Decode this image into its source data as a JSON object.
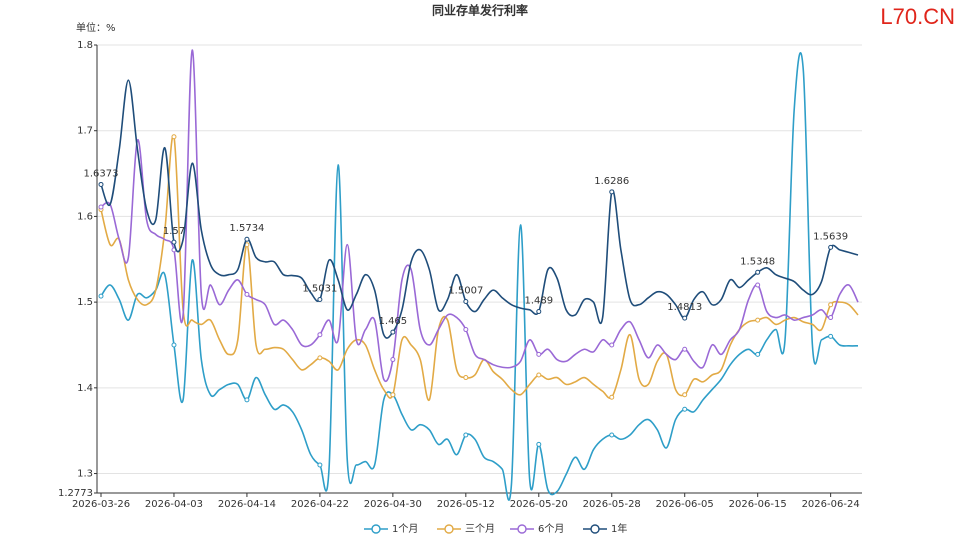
{
  "chart_data": {
    "type": "line",
    "title": "同业存单发行利率",
    "watermark": "L70.CN",
    "y_label": "单位：%",
    "legend": "bottom",
    "grid": true,
    "smooth": true,
    "ylim": [
      1.2773,
      1.8
    ],
    "yticks": [
      1.2773,
      1.3,
      1.4,
      1.5,
      1.6,
      1.7,
      1.8
    ],
    "categories": [
      "2026-03-26",
      null,
      null,
      null,
      null,
      null,
      null,
      null,
      "2026-04-03",
      null,
      null,
      null,
      null,
      null,
      null,
      null,
      "2026-04-14",
      null,
      null,
      null,
      null,
      null,
      null,
      null,
      "2026-04-22",
      null,
      null,
      null,
      null,
      null,
      null,
      null,
      "2026-04-30",
      null,
      null,
      null,
      null,
      null,
      null,
      null,
      "2026-05-12",
      null,
      null,
      null,
      null,
      null,
      null,
      null,
      "2026-05-20",
      null,
      null,
      null,
      null,
      null,
      null,
      null,
      "2026-05-28",
      null,
      null,
      null,
      null,
      null,
      null,
      null,
      "2026-06-05",
      null,
      null,
      null,
      null,
      null,
      null,
      null,
      "2026-06-15",
      null,
      null,
      null,
      null,
      null,
      null,
      null,
      "2026-06-24",
      null,
      null,
      null
    ],
    "series": [
      {
        "name": "1个月",
        "color": "#2e9ec8",
        "values": [
          1.507,
          1.52,
          1.503,
          1.479,
          1.509,
          1.505,
          1.514,
          1.532,
          1.45,
          1.386,
          1.549,
          1.433,
          1.392,
          1.398,
          1.404,
          1.404,
          1.386,
          1.412,
          1.392,
          1.375,
          1.38,
          1.372,
          1.351,
          1.322,
          1.31,
          1.305,
          1.66,
          1.316,
          1.31,
          1.314,
          1.31,
          1.386,
          1.392,
          1.369,
          1.351,
          1.357,
          1.351,
          1.334,
          1.34,
          1.322,
          1.345,
          1.34,
          1.319,
          1.314,
          1.305,
          1.287,
          1.59,
          1.293,
          1.334,
          1.281,
          1.279,
          1.299,
          1.319,
          1.305,
          1.328,
          1.34,
          1.345,
          1.34,
          1.345,
          1.357,
          1.363,
          1.351,
          1.33,
          1.363,
          1.375,
          1.372,
          1.386,
          1.398,
          1.41,
          1.427,
          1.439,
          1.445,
          1.439,
          1.456,
          1.468,
          1.456,
          1.724,
          1.771,
          1.45,
          1.456,
          1.46,
          1.45,
          1.449,
          1.449
        ]
      },
      {
        "name": "三个月",
        "color": "#e2aa45",
        "values": [
          1.608,
          1.567,
          1.573,
          1.526,
          1.503,
          1.497,
          1.514,
          1.584,
          1.693,
          1.491,
          1.479,
          1.474,
          1.479,
          1.456,
          1.439,
          1.456,
          1.567,
          1.45,
          1.445,
          1.447,
          1.445,
          1.433,
          1.421,
          1.427,
          1.435,
          1.431,
          1.421,
          1.445,
          1.456,
          1.45,
          1.421,
          1.398,
          1.392,
          1.456,
          1.45,
          1.433,
          1.386,
          1.468,
          1.479,
          1.421,
          1.412,
          1.415,
          1.433,
          1.419,
          1.41,
          1.398,
          1.392,
          1.404,
          1.415,
          1.41,
          1.412,
          1.404,
          1.407,
          1.412,
          1.404,
          1.396,
          1.389,
          1.421,
          1.462,
          1.41,
          1.404,
          1.431,
          1.439,
          1.398,
          1.392,
          1.41,
          1.407,
          1.415,
          1.421,
          1.45,
          1.468,
          1.477,
          1.479,
          1.482,
          1.474,
          1.479,
          1.482,
          1.477,
          1.474,
          1.468,
          1.497,
          1.5,
          1.497,
          1.485
        ]
      },
      {
        "name": "6个月",
        "color": "#9a69d6",
        "values": [
          1.611,
          1.614,
          1.573,
          1.552,
          1.689,
          1.596,
          1.579,
          1.573,
          1.561,
          1.485,
          1.794,
          1.509,
          1.52,
          1.497,
          1.514,
          1.526,
          1.509,
          1.503,
          1.497,
          1.474,
          1.479,
          1.468,
          1.45,
          1.45,
          1.462,
          1.479,
          1.456,
          1.567,
          1.456,
          1.468,
          1.479,
          1.41,
          1.433,
          1.526,
          1.538,
          1.468,
          1.45,
          1.468,
          1.485,
          1.482,
          1.468,
          1.439,
          1.433,
          1.427,
          1.424,
          1.424,
          1.431,
          1.456,
          1.439,
          1.445,
          1.433,
          1.431,
          1.439,
          1.445,
          1.442,
          1.456,
          1.45,
          1.468,
          1.477,
          1.456,
          1.435,
          1.45,
          1.439,
          1.433,
          1.445,
          1.431,
          1.424,
          1.45,
          1.439,
          1.456,
          1.468,
          1.503,
          1.52,
          1.489,
          1.482,
          1.485,
          1.479,
          1.482,
          1.485,
          1.491,
          1.482,
          1.509,
          1.52,
          1.5
        ]
      },
      {
        "name": "1年",
        "color": "#1f4d7a",
        "show_labels": true,
        "values": [
          1.6373,
          1.614,
          1.678,
          1.759,
          1.678,
          1.608,
          1.596,
          1.68,
          1.57,
          1.573,
          1.662,
          1.584,
          1.544,
          1.532,
          1.532,
          1.538,
          1.5734,
          1.552,
          1.547,
          1.547,
          1.532,
          1.531,
          1.528,
          1.511,
          1.5031,
          1.549,
          1.526,
          1.491,
          1.509,
          1.532,
          1.514,
          1.462,
          1.465,
          1.491,
          1.547,
          1.561,
          1.538,
          1.491,
          1.503,
          1.532,
          1.5007,
          1.489,
          1.503,
          1.514,
          1.505,
          1.497,
          1.493,
          1.491,
          1.489,
          1.538,
          1.528,
          1.491,
          1.485,
          1.503,
          1.5,
          1.482,
          1.6286,
          1.561,
          1.503,
          1.497,
          1.505,
          1.512,
          1.509,
          1.497,
          1.4813,
          1.503,
          1.512,
          1.497,
          1.503,
          1.526,
          1.517,
          1.526,
          1.5348,
          1.54,
          1.532,
          1.528,
          1.524,
          1.514,
          1.509,
          1.524,
          1.5639,
          1.561,
          1.558,
          1.555
        ]
      }
    ]
  }
}
